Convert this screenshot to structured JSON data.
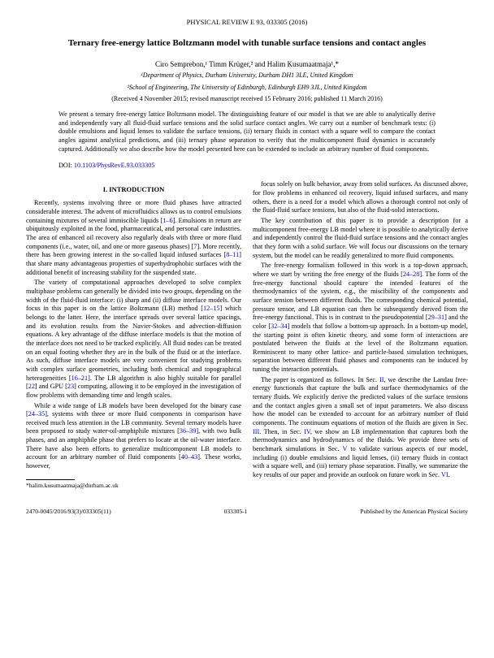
{
  "header": "PHYSICAL REVIEW E 93, 033305 (2016)",
  "title": "Ternary free-energy lattice Boltzmann model with tunable surface tensions and contact angles",
  "authors": "Ciro Semprebon,¹ Timm Krüger,² and Halim Kusumaatmaja¹,*",
  "affiliations_1": "¹Department of Physics, Durham University, Durham DH1 3LE, United Kingdom",
  "affiliations_2": "²School of Engineering, The University of Edinburgh, Edinburgh EH9 3JL, United Kingdom",
  "dates": "(Received 4 November 2015; revised manuscript received 15 February 2016; published 11 March 2016)",
  "abstract": "We present a ternary free-energy lattice Boltzmann model. The distinguishing feature of our model is that we are able to analytically derive and independently vary all fluid-fluid surface tensions and the solid surface contact angles. We carry out a number of benchmark tests: (i) double emulsions and liquid lenses to validate the surface tensions, (ii) ternary fluids in contact with a square well to compare the contact angles against analytical predictions, and (iii) ternary phase separation to verify that the multicomponent fluid dynamics is accurately captured. Additionally we also describe how the model presented here can be extended to include an arbitrary number of fluid components.",
  "doi_label": "DOI: ",
  "doi_link": "10.1103/PhysRevE.93.033305",
  "section1_heading": "I. INTRODUCTION",
  "col1_p1_a": "Recently, systems involving three or more fluid phases have attracted considerable interest. The advent of microfluidics allows us to control emulsions containing mixtures of several immiscible liquids [",
  "col1_p1_ref1": "1–6",
  "col1_p1_b": "]. Emulsions in return are ubiquitously exploited in the food, pharmaceutical, and personal care industries. The area of enhanced oil recovery also regularly deals with three or more fluid components (i.e., water, oil, and one or more gaseous phases) [",
  "col1_p1_ref2": "7",
  "col1_p1_c": "]. More recently, there has been growing interest in the so-called liquid infused surfaces [",
  "col1_p1_ref3": "8–11",
  "col1_p1_d": "] that share many advantageous properties of superhydrophobic surfaces with the additional benefit of increasing stability for the suspended state.",
  "col1_p2_a": "The variety of computational approaches developed to solve complex multiphase problems can generally be divided into two groups, depending on the width of the fluid-fluid interface: (i) sharp and (ii) diffuse interface models. Our focus in this paper is on the lattice Boltzmann (LB) method [",
  "col1_p2_ref1": "12–15",
  "col1_p2_b": "] which belongs to the latter. Here, the interface spreads over several lattice spacings, and its evolution results from the Navier-Stokes and advection-diffusion equations. A key advantage of the diffuse interface models is that the motion of the interface does not need to be tracked explicitly. All fluid nodes can be treated on an equal footing whether they are in the bulk of the fluid or at the interface. As such, diffuse interface models are very convenient for studying problems with complex surface geometries, including both chemical and topographical heterogeneities [",
  "col1_p2_ref2": "16–21",
  "col1_p2_c": "]. The LB algorithm is also highly suitable for parallel [",
  "col1_p2_ref3": "22",
  "col1_p2_d": "] and GPU [",
  "col1_p2_ref4": "23",
  "col1_p2_e": "] computing, allowing it to be employed in the investigation of flow problems with demanding time and length scales.",
  "col1_p3_a": "While a wide range of LB models have been developed for the binary case [",
  "col1_p3_ref1": "24–35",
  "col1_p3_b": "], systems with three or more fluid components in comparison have received much less attention in the LB community. Several ternary models have been proposed to study water-oil-amphiphile mixtures [",
  "col1_p3_ref2": "36–39",
  "col1_p3_c": "], with two bulk phases, and an amphiphile phase that prefers to locate at the oil-water interface. There have also been efforts to generalize multicomponent LB models to account for an arbitrary number of fluid components [",
  "col1_p3_ref3": "40–43",
  "col1_p3_d": "]. These works, however,",
  "footnote": "*halim.kusumaatmaja@durham.ac.uk",
  "col2_p1": "focus solely on bulk behavior, away from solid surfaces. As discussed above, for flow problems in enhanced oil recovery, liquid infused surfaces, and many others, there is a need for a model which allows a thorough control not only of the fluid-fluid surface tensions, but also of the fluid-solid interactions.",
  "col2_p2": "The key contribution of this paper is to provide a description for a multicomponent free-energy LB model where it is possible to analytically derive and independently control the fluid-fluid surface tensions and the contact angles that they form with a solid surface. We will focus our discussions on the ternary system, but the model can be readily generalized to more fluid components.",
  "col2_p3_a": "The free-energy formalism followed in this work is a top-down approach, where we start by writing the free energy of the fluids [",
  "col2_p3_ref1": "24–28",
  "col2_p3_b": "]. The form of the free-energy functional should capture the intended features of the thermodynamics of the system, e.g., the miscibility of the components and surface tension between different fluids. The corresponding chemical potential, pressure tensor, and LB equation can then be subsequently derived from the free-energy functional. This is in contrast to the pseudopotential [",
  "col2_p3_ref2": "29–31",
  "col2_p3_c": "] and the color [",
  "col2_p3_ref3": "32–34",
  "col2_p3_d": "] models that follow a bottom-up approach. In a bottom-up model, the starting point is often kinetic theory, and some form of interactions are postulated between the fluids at the level of the Boltzmann equation. Reminiscent to many other lattice- and particle-based simulation techniques, separation between different fluid phases and components can be induced by tuning the interaction potentials.",
  "col2_p4_a": "The paper is organized as follows. In Sec. ",
  "col2_p4_ref1": "II",
  "col2_p4_b": ", we describe the Landau free-energy functionals that capture the bulk and surface thermodynamics of the ternary fluids. We explicitly derive the predicted values of the surface tensions and the contact angles given a small set of input parameters. We also discuss how the model can be extended to account for an arbitrary number of fluid components. The continuum equations of motion of the fluids are given in Sec. ",
  "col2_p4_ref2": "III",
  "col2_p4_c": ". Then, in Sec. ",
  "col2_p4_ref3": "IV",
  "col2_p4_d": ", we show an LB implementation that captures both the thermodynamics and hydrodynamics of the fluids. We provide three sets of benchmark simulations in Sec. ",
  "col2_p4_ref4": "V",
  "col2_p4_e": " to validate various aspects of our model, including (i) double emulsions and liquid lenses, (ii) ternary fluids in contact with a square well, and (iii) ternary phase separation. Finally, we summarize the key results of our paper and provide an outlook on future work in Sec. ",
  "col2_p4_ref5": "VI",
  "col2_p4_f": ".",
  "footer_left": "2470-0045/2016/93(3)/033305(11)",
  "footer_center": "033305-1",
  "footer_right": "Published by the American Physical Society"
}
